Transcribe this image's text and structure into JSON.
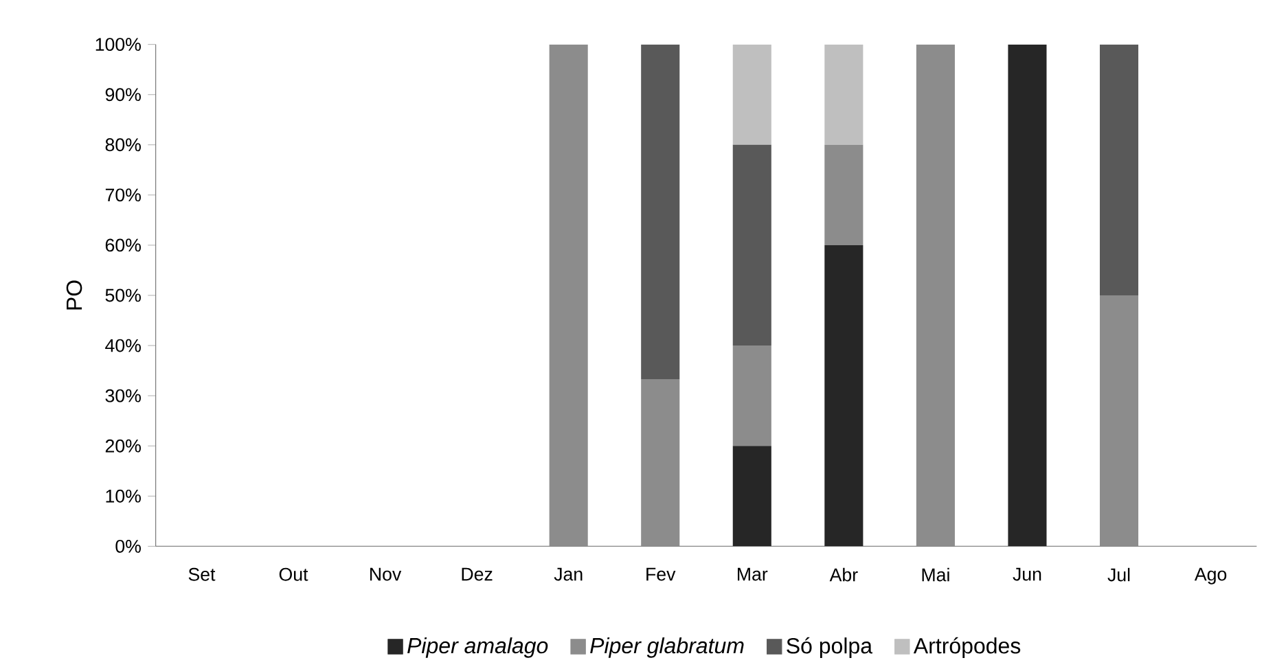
{
  "chart_data": {
    "type": "bar",
    "stacked": true,
    "ylabel": "PO",
    "categories": [
      "Set",
      "Out",
      "Nov",
      "Dez",
      "Jan",
      "Fev",
      "Mar",
      "Abr",
      "Mai",
      "Jun",
      "Jul",
      "Ago"
    ],
    "series": [
      {
        "name": "*Piper amalago*",
        "color": "#262626",
        "values": [
          null,
          null,
          null,
          null,
          null,
          null,
          20,
          60,
          null,
          100,
          null,
          null
        ]
      },
      {
        "name": "*Piper glabratum*",
        "color": "#8c8c8c",
        "values": [
          null,
          null,
          null,
          null,
          100,
          33.3,
          20,
          20,
          100,
          null,
          50,
          null
        ]
      },
      {
        "name": "Só polpa",
        "color": "#595959",
        "values": [
          null,
          null,
          null,
          null,
          null,
          66.7,
          40,
          null,
          null,
          null,
          50,
          null
        ]
      },
      {
        "name": "Artrópodes",
        "color": "#bfbfbf",
        "values": [
          null,
          null,
          null,
          null,
          null,
          null,
          20,
          20,
          null,
          null,
          null,
          null
        ]
      }
    ],
    "ylim": [
      0,
      100
    ],
    "yticks": [
      {
        "value": 0,
        "label": "0%"
      },
      {
        "value": 10,
        "label": "10%"
      },
      {
        "value": 20,
        "label": "20%"
      },
      {
        "value": 30,
        "label": "30%"
      },
      {
        "value": 40,
        "label": "40%"
      },
      {
        "value": 50,
        "label": "50%"
      },
      {
        "value": 60,
        "label": "60%"
      },
      {
        "value": 70,
        "label": "70%"
      },
      {
        "value": 80,
        "label": "80%"
      },
      {
        "value": 90,
        "label": "90%"
      },
      {
        "value": 100,
        "label": "100%"
      }
    ],
    "grid": false,
    "legend": "bottom"
  }
}
